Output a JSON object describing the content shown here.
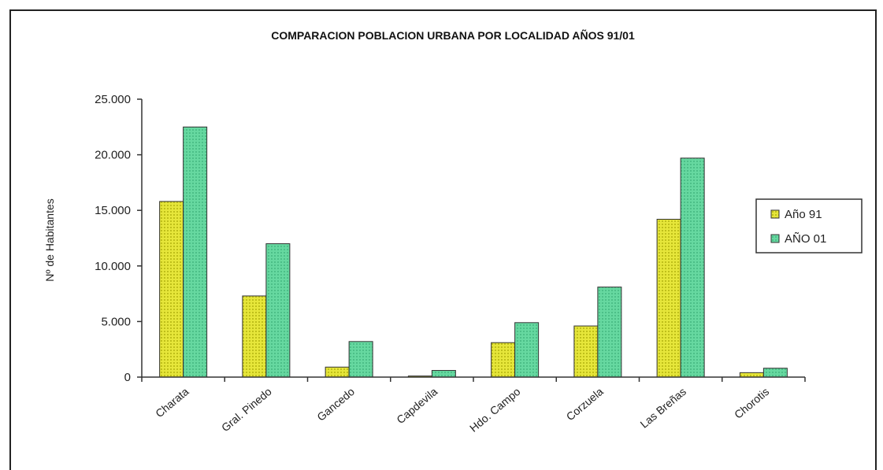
{
  "chart_data": {
    "type": "bar",
    "title": "COMPARACION POBLACION URBANA POR LOCALIDAD AÑOS 91/01",
    "xlabel": "",
    "ylabel": "Nº de Habitantes",
    "ylim": [
      0,
      25000
    ],
    "yticks": [
      0,
      5000,
      10000,
      15000,
      20000,
      25000
    ],
    "ytick_labels": [
      "0",
      "5.000",
      "10.000",
      "15.000",
      "20.000",
      "25.000"
    ],
    "grid": false,
    "legend_position": "right",
    "categories": [
      "Charata",
      "Gral. Pinedo",
      "Gancedo",
      "Capdevila",
      "Hdo. Campo",
      "Corzuela",
      "Las Breñas",
      "Chorotis"
    ],
    "series": [
      {
        "name": "Año 91",
        "color": "#d9d92a",
        "values": [
          15800,
          7300,
          900,
          100,
          3100,
          4600,
          14200,
          400
        ]
      },
      {
        "name": "AÑO 01",
        "color": "#5fd39a",
        "values": [
          22500,
          12000,
          3200,
          600,
          4900,
          8100,
          19700,
          800
        ]
      }
    ]
  }
}
